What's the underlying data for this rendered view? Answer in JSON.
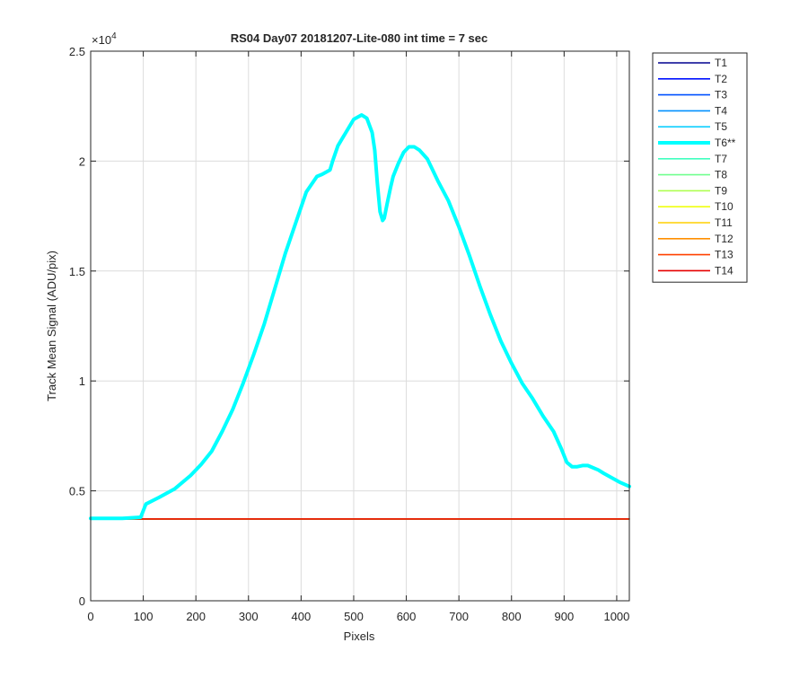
{
  "chart_data": {
    "type": "line",
    "title": "RS04 Day07 20181207-Lite-080 int time = 7 sec",
    "xlabel": "Pixels",
    "ylabel": "Track Mean Signal (ADU/pix)",
    "exponent_base": "×10",
    "exponent_power": "4",
    "xlim": [
      0,
      1024
    ],
    "ylim": [
      0,
      25000
    ],
    "xticks": [
      0,
      100,
      200,
      300,
      400,
      500,
      600,
      700,
      800,
      900,
      1000
    ],
    "xtick_labels": [
      "0",
      "100",
      "200",
      "300",
      "400",
      "500",
      "600",
      "700",
      "800",
      "900",
      "1000"
    ],
    "yticks": [
      0,
      5000,
      10000,
      15000,
      20000,
      25000
    ],
    "ytick_labels": [
      "0",
      "0.5",
      "1",
      "1.5",
      "2",
      "2.5"
    ],
    "grid": true,
    "legend_position": "outside-right",
    "series": [
      {
        "name": "T1",
        "color": "#00008f",
        "bold": false,
        "x": [
          0,
          1024
        ],
        "y": [
          3720,
          3720
        ]
      },
      {
        "name": "T2",
        "color": "#0010ff",
        "bold": false,
        "x": [
          0,
          1024
        ],
        "y": [
          3720,
          3720
        ]
      },
      {
        "name": "T3",
        "color": "#0050ff",
        "bold": false,
        "x": [
          0,
          1024
        ],
        "y": [
          3720,
          3720
        ]
      },
      {
        "name": "T4",
        "color": "#0090ff",
        "bold": false,
        "x": [
          0,
          1024
        ],
        "y": [
          3720,
          3720
        ]
      },
      {
        "name": "T5",
        "color": "#10cfff",
        "bold": false,
        "x": [
          0,
          1024
        ],
        "y": [
          3720,
          3720
        ]
      },
      {
        "name": "T6**",
        "color": "#00ffff",
        "bold": true,
        "x": [
          0,
          60,
          95,
          105,
          130,
          160,
          190,
          210,
          230,
          250,
          270,
          290,
          310,
          330,
          350,
          370,
          390,
          410,
          430,
          440,
          455,
          460,
          470,
          485,
          500,
          515,
          525,
          535,
          540,
          545,
          550,
          555,
          558,
          563,
          570,
          575,
          585,
          595,
          605,
          615,
          625,
          640,
          650,
          660,
          680,
          700,
          720,
          740,
          760,
          780,
          800,
          820,
          840,
          860,
          880,
          895,
          905,
          915,
          925,
          935,
          945,
          955,
          965,
          975,
          990,
          1005,
          1024
        ],
        "y": [
          3750,
          3750,
          3800,
          4400,
          4700,
          5100,
          5700,
          6200,
          6800,
          7700,
          8700,
          9900,
          11200,
          12600,
          14200,
          15800,
          17200,
          18600,
          19300,
          19400,
          19600,
          20000,
          20700,
          21300,
          21900,
          22100,
          21950,
          21300,
          20500,
          19000,
          17700,
          17300,
          17400,
          18000,
          18800,
          19300,
          19900,
          20400,
          20650,
          20650,
          20500,
          20100,
          19600,
          19100,
          18200,
          17000,
          15700,
          14300,
          13000,
          11800,
          10800,
          9900,
          9200,
          8400,
          7700,
          6900,
          6300,
          6100,
          6100,
          6150,
          6150,
          6050,
          5950,
          5800,
          5600,
          5400,
          5200
        ]
      },
      {
        "name": "T7",
        "color": "#40ffbf",
        "bold": false,
        "x": [
          0,
          1024
        ],
        "y": [
          3720,
          3720
        ]
      },
      {
        "name": "T8",
        "color": "#70ff8f",
        "bold": false,
        "x": [
          0,
          1024
        ],
        "y": [
          3720,
          3720
        ]
      },
      {
        "name": "T9",
        "color": "#afff50",
        "bold": false,
        "x": [
          0,
          1024
        ],
        "y": [
          3720,
          3720
        ]
      },
      {
        "name": "T10",
        "color": "#efff10",
        "bold": false,
        "x": [
          0,
          1024
        ],
        "y": [
          3720,
          3720
        ]
      },
      {
        "name": "T11",
        "color": "#ffcf00",
        "bold": false,
        "x": [
          0,
          1024
        ],
        "y": [
          3720,
          3720
        ]
      },
      {
        "name": "T12",
        "color": "#ff8f00",
        "bold": false,
        "x": [
          0,
          1024
        ],
        "y": [
          3720,
          3720
        ]
      },
      {
        "name": "T13",
        "color": "#ff4000",
        "bold": false,
        "x": [
          0,
          1024
        ],
        "y": [
          3720,
          3720
        ]
      },
      {
        "name": "T14",
        "color": "#e60000",
        "bold": false,
        "x": [
          0,
          1024
        ],
        "y": [
          3720,
          3720
        ]
      }
    ]
  }
}
